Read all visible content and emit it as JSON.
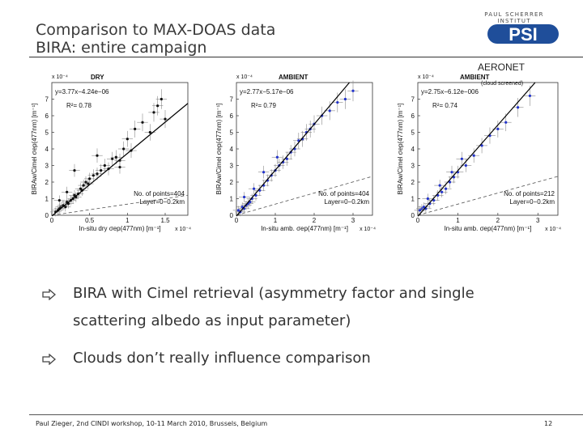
{
  "slide": {
    "title_line1": "Comparison to MAX-DOAS data",
    "title_line2": "BIRA: entire campaign",
    "logo_top": "PAUL SCHERRER INSTITUT",
    "logo_text": "PSI",
    "aeronet_label": "AERONET",
    "bullet1_line1": "BIRA with Cimel retrieval (asymmetry factor and single",
    "bullet1_line2": "scattering albedo as input parameter)",
    "bullet2": "Clouds don’t really influence comparison",
    "footer": "Paul Zieger, 2nd CINDI workshop, 10-11 March 2010, Brussels, Belgium",
    "page_number": "12",
    "colors": {
      "title": "#3a3a3a",
      "blue_points": "#2233cc",
      "black_points": "#111111",
      "logo_blue": "#1f4e9a"
    }
  },
  "chart_data": [
    {
      "type": "scatter",
      "title": "DRY",
      "subtitle": "",
      "scale_y": "x 10⁻⁴",
      "scale_x": "x 10⁻⁴",
      "xlabel": "In-situ dry σep(477nm)  [m⁻¹]",
      "ylabel": "BIRAw/Cimel σep(477nm)  [m⁻¹]",
      "xlim": [
        0,
        1.8
      ],
      "ylim": [
        0,
        8
      ],
      "xticks": [
        "0",
        "0.5",
        "1",
        "1.5"
      ],
      "xtick_values": [
        0,
        0.5,
        1,
        1.5
      ],
      "yticks": [
        "0",
        "1",
        "2",
        "3",
        "4",
        "5",
        "6",
        "7"
      ],
      "fit_label": "y=3.77x−4.24e−06",
      "r2_label": "R²= 0.78",
      "fit": {
        "slope": 3.77,
        "intercept": -0.0424
      },
      "n_points_label": "No. of points=404",
      "layer_label": "Layer=0−0.2km",
      "point_color": "#111111",
      "points_x": [
        0.05,
        0.08,
        0.1,
        0.12,
        0.15,
        0.18,
        0.2,
        0.22,
        0.25,
        0.28,
        0.3,
        0.32,
        0.35,
        0.38,
        0.4,
        0.42,
        0.45,
        0.48,
        0.5,
        0.55,
        0.6,
        0.65,
        0.7,
        0.75,
        0.8,
        0.85,
        0.9,
        0.95,
        1.0,
        1.05,
        1.1,
        1.2,
        1.3,
        1.35,
        1.4,
        1.45,
        1.5,
        0.3,
        0.6,
        0.9,
        0.1,
        0.2
      ],
      "points_y": [
        0.2,
        0.3,
        0.4,
        0.5,
        0.6,
        0.5,
        0.8,
        0.7,
        0.9,
        1.0,
        1.2,
        1.1,
        1.3,
        1.6,
        1.5,
        1.8,
        2.0,
        1.9,
        2.2,
        2.4,
        2.5,
        2.7,
        3.0,
        2.8,
        3.4,
        3.5,
        3.3,
        4.0,
        4.6,
        3.9,
        5.2,
        5.6,
        5.0,
        6.2,
        6.6,
        7.0,
        5.8,
        2.7,
        3.6,
        2.9,
        0.9,
        1.4
      ]
    },
    {
      "type": "scatter",
      "title": "AMBIENT",
      "subtitle": "",
      "scale_y": "x 10⁻⁴",
      "scale_x": "x 10⁻⁴",
      "xlabel": "In-situ amb. σep(477nm)  [m⁻¹]",
      "ylabel": "BIRAw/Cimel σep(477nm)  [m⁻¹]",
      "xlim": [
        0,
        3.5
      ],
      "ylim": [
        0,
        8
      ],
      "xticks": [
        "0",
        "1",
        "2",
        "3"
      ],
      "xtick_values": [
        0,
        1,
        2,
        3
      ],
      "yticks": [
        "0",
        "1",
        "2",
        "3",
        "4",
        "5",
        "6",
        "7"
      ],
      "fit_label": "y=2.77x−5.17e−06",
      "r2_label": "R²= 0.79",
      "fit": {
        "slope": 2.77,
        "intercept": -0.0517
      },
      "n_points_label": "No. of points=404",
      "layer_label": "Layer=0−0.2km",
      "point_color": "#2233cc",
      "points_x": [
        0.05,
        0.1,
        0.15,
        0.2,
        0.25,
        0.3,
        0.35,
        0.4,
        0.5,
        0.6,
        0.7,
        0.8,
        0.9,
        1.0,
        1.1,
        1.2,
        1.3,
        1.4,
        1.5,
        1.6,
        1.7,
        1.8,
        1.9,
        2.0,
        2.2,
        2.4,
        2.6,
        2.8,
        3.0,
        0.2,
        0.45,
        0.7,
        1.05
      ],
      "points_y": [
        0.3,
        0.2,
        0.5,
        0.4,
        0.6,
        0.7,
        0.8,
        1.0,
        1.2,
        1.5,
        1.8,
        2.1,
        2.4,
        2.7,
        3.0,
        3.2,
        3.4,
        3.8,
        4.0,
        4.5,
        4.6,
        5.0,
        5.2,
        5.5,
        6.0,
        6.3,
        6.8,
        7.0,
        7.5,
        1.1,
        1.6,
        2.6,
        3.5
      ]
    },
    {
      "type": "scatter",
      "title": "AMBIENT",
      "subtitle": "(cloud screened)",
      "scale_y": "x 10⁻⁴",
      "scale_x": "x 10⁻⁴",
      "xlabel": "In-situ amb. σep(477nm)  [m⁻¹]",
      "ylabel": "BIRAw/Cimel σep(477nm)  [m⁻¹]",
      "xlim": [
        0,
        3.5
      ],
      "ylim": [
        0,
        8
      ],
      "xticks": [
        "0",
        "1",
        "2",
        "3"
      ],
      "xtick_values": [
        0,
        1,
        2,
        3
      ],
      "yticks": [
        "0",
        "1",
        "2",
        "3",
        "4",
        "5",
        "6",
        "7"
      ],
      "fit_label": "y=2.75x−6.12e−006",
      "r2_label": "R²= 0.74",
      "fit": {
        "slope": 2.75,
        "intercept": -0.0612
      },
      "n_points_label": "No. of points=212",
      "layer_label": "Layer=0−0.2km",
      "point_color": "#2233cc",
      "points_x": [
        0.05,
        0.1,
        0.15,
        0.2,
        0.3,
        0.4,
        0.5,
        0.6,
        0.7,
        0.8,
        0.9,
        1.0,
        1.2,
        1.4,
        1.6,
        1.8,
        2.0,
        2.2,
        2.5,
        2.8,
        0.25,
        0.55,
        0.85,
        1.1
      ],
      "points_y": [
        0.3,
        0.4,
        0.5,
        0.4,
        0.7,
        0.9,
        1.2,
        1.4,
        1.6,
        2.0,
        2.3,
        2.6,
        3.0,
        3.6,
        4.2,
        4.8,
        5.2,
        5.6,
        6.5,
        7.2,
        1.0,
        1.8,
        2.6,
        3.4
      ]
    }
  ]
}
